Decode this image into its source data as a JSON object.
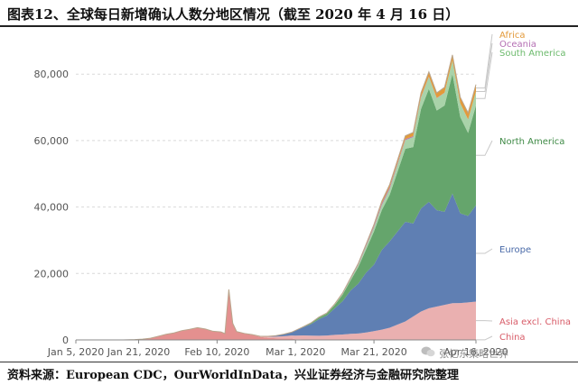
{
  "title": "图表12、全球每日新增确认人数分地区情况（截至 2020 年 4 月 16 日）",
  "source": "资料来源：European CDC，OurWorldInData，兴业证券经济与金融研究院整理",
  "watermark": "张忆东策略世界",
  "chart_data": {
    "type": "area",
    "stacked": true,
    "x": [
      "2020-01-05",
      "2020-01-09",
      "2020-01-13",
      "2020-01-17",
      "2020-01-20",
      "2020-01-22",
      "2020-01-24",
      "2020-01-26",
      "2020-01-28",
      "2020-01-30",
      "2020-02-01",
      "2020-02-03",
      "2020-02-05",
      "2020-02-07",
      "2020-02-09",
      "2020-02-11",
      "2020-02-12",
      "2020-02-13",
      "2020-02-14",
      "2020-02-15",
      "2020-02-17",
      "2020-02-19",
      "2020-02-21",
      "2020-02-23",
      "2020-02-25",
      "2020-02-27",
      "2020-02-29",
      "2020-03-01",
      "2020-03-03",
      "2020-03-05",
      "2020-03-07",
      "2020-03-09",
      "2020-03-11",
      "2020-03-13",
      "2020-03-15",
      "2020-03-17",
      "2020-03-19",
      "2020-03-21",
      "2020-03-23",
      "2020-03-25",
      "2020-03-27",
      "2020-03-29",
      "2020-03-31",
      "2020-04-02",
      "2020-04-04",
      "2020-04-06",
      "2020-04-08",
      "2020-04-10",
      "2020-04-12",
      "2020-04-14",
      "2020-04-16"
    ],
    "series": [
      {
        "name": "China",
        "color": "#e4908f",
        "values": [
          0,
          0,
          0,
          0,
          100,
          250,
          500,
          1100,
          1700,
          2100,
          2800,
          3200,
          3700,
          3300,
          2600,
          2400,
          1900,
          15200,
          5000,
          2500,
          1900,
          1500,
          900,
          600,
          500,
          430,
          430,
          200,
          150,
          100,
          40,
          30,
          20,
          20,
          20,
          40,
          50,
          50,
          80,
          60,
          100,
          50,
          50,
          40,
          40,
          40,
          60,
          50,
          100,
          100,
          50
        ]
      },
      {
        "name": "Asia excl. China",
        "color": "#eab0b0",
        "values": [
          0,
          0,
          0,
          0,
          0,
          0,
          0,
          0,
          0,
          0,
          0,
          0,
          0,
          0,
          0,
          0,
          0,
          0,
          0,
          0,
          50,
          100,
          200,
          400,
          500,
          700,
          900,
          1100,
          1200,
          1200,
          1200,
          1300,
          1500,
          1600,
          1800,
          1900,
          2200,
          2600,
          3000,
          3600,
          4500,
          5500,
          7000,
          8500,
          9500,
          10000,
          10500,
          11000,
          11000,
          11200,
          11500
        ]
      },
      {
        "name": "Europe",
        "color": "#5f7fb3",
        "values": [
          0,
          0,
          0,
          0,
          0,
          0,
          0,
          0,
          0,
          0,
          0,
          0,
          0,
          0,
          0,
          0,
          0,
          0,
          0,
          0,
          0,
          0,
          0,
          100,
          300,
          600,
          1000,
          1500,
          2500,
          3500,
          5000,
          6000,
          8000,
          10000,
          13000,
          15000,
          18000,
          20000,
          24000,
          26000,
          28000,
          30000,
          28000,
          31000,
          32000,
          29000,
          28000,
          33000,
          27000,
          26000,
          29000
        ]
      },
      {
        "name": "North America",
        "color": "#65a56c",
        "values": [
          0,
          0,
          0,
          0,
          0,
          0,
          0,
          0,
          0,
          0,
          0,
          0,
          0,
          0,
          0,
          0,
          0,
          0,
          0,
          0,
          0,
          0,
          0,
          0,
          0,
          0,
          0,
          50,
          100,
          300,
          500,
          600,
          1000,
          2000,
          3000,
          5000,
          7000,
          10000,
          12000,
          14000,
          18000,
          22000,
          23000,
          30000,
          34000,
          30000,
          32000,
          36000,
          29000,
          25000,
          30000
        ]
      },
      {
        "name": "South America",
        "color": "#a9d3a9",
        "values": [
          0,
          0,
          0,
          0,
          0,
          0,
          0,
          0,
          0,
          0,
          0,
          0,
          0,
          0,
          0,
          0,
          0,
          0,
          0,
          0,
          0,
          0,
          0,
          0,
          0,
          0,
          0,
          10,
          20,
          40,
          80,
          100,
          150,
          250,
          400,
          600,
          900,
          1200,
          1500,
          1800,
          2200,
          2600,
          3000,
          3400,
          3600,
          3700,
          3800,
          4000,
          4100,
          4000,
          4200
        ]
      },
      {
        "name": "Oceania",
        "color": "#b46fb3",
        "values": [
          0,
          0,
          0,
          0,
          0,
          0,
          0,
          0,
          0,
          0,
          0,
          0,
          0,
          0,
          0,
          0,
          0,
          0,
          0,
          0,
          0,
          0,
          0,
          0,
          0,
          0,
          0,
          0,
          0,
          10,
          20,
          30,
          60,
          100,
          150,
          200,
          300,
          400,
          500,
          500,
          400,
          300,
          300,
          200,
          150,
          100,
          80,
          60,
          50,
          40,
          30
        ]
      },
      {
        "name": "Africa",
        "color": "#e39a3a",
        "values": [
          0,
          0,
          0,
          0,
          0,
          0,
          0,
          0,
          0,
          0,
          0,
          0,
          0,
          0,
          0,
          0,
          0,
          0,
          0,
          0,
          0,
          0,
          0,
          0,
          0,
          0,
          0,
          10,
          20,
          30,
          50,
          80,
          100,
          150,
          200,
          300,
          400,
          500,
          700,
          800,
          900,
          1000,
          1100,
          1300,
          1400,
          1500,
          1600,
          1700,
          1800,
          2000,
          2100
        ]
      }
    ],
    "xticks": [
      "Jan 5, 2020",
      "Jan 21, 2020",
      "Feb 10, 2020",
      "Mar 1, 2020",
      "Mar 21, 2020",
      "Apr 16, 2020"
    ],
    "xtick_dates": [
      "2020-01-05",
      "2020-01-21",
      "2020-02-10",
      "2020-03-01",
      "2020-03-21",
      "2020-04-16"
    ],
    "yticks": [
      "0",
      "20,000",
      "40,000",
      "60,000",
      "80,000"
    ],
    "ytick_values": [
      0,
      20000,
      40000,
      60000,
      80000
    ],
    "ylim": [
      0,
      92000
    ],
    "xlim": [
      "2020-01-05",
      "2020-04-16"
    ],
    "grid": true,
    "legend": "right (labels at series ends)",
    "legend_order": [
      "Africa",
      "Oceania",
      "South America",
      "North America",
      "Europe",
      "Asia excl. China",
      "China"
    ],
    "legend_colors": {
      "Africa": "#e39a3a",
      "Oceania": "#b46fb3",
      "South America": "#6cba6c",
      "North America": "#3f8a46",
      "Europe": "#4a6aa8",
      "Asia excl. China": "#d85c68",
      "China": "#d85c68"
    }
  }
}
